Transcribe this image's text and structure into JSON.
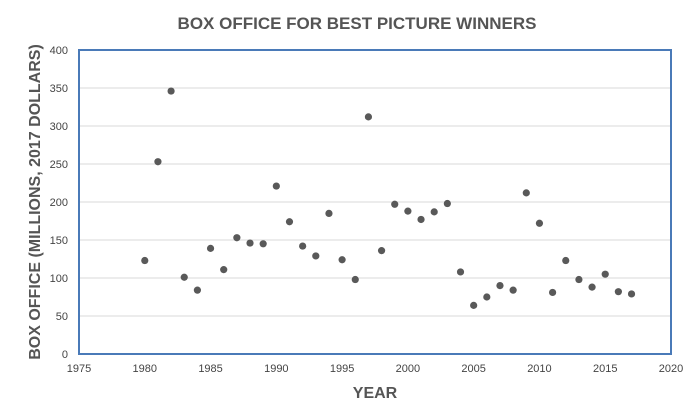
{
  "chart_data": {
    "type": "scatter",
    "title": "BOX OFFICE FOR BEST PICTURE WINNERS",
    "xlabel": "YEAR",
    "ylabel": "BOX OFFICE (MILLIONS, 2017 DOLLARS)",
    "xlim": [
      1975,
      2020
    ],
    "ylim": [
      0,
      400
    ],
    "xticks": [
      1975,
      1980,
      1985,
      1990,
      1995,
      2000,
      2005,
      2010,
      2015,
      2020
    ],
    "yticks": [
      0,
      50,
      100,
      150,
      200,
      250,
      300,
      350,
      400
    ],
    "grid": "horizontal",
    "legend": "none",
    "marker_color": "#595959",
    "plot_border_color": "#4a7ab8",
    "x": [
      1980,
      1981,
      1982,
      1983,
      1984,
      1985,
      1986,
      1987,
      1988,
      1989,
      1990,
      1991,
      1992,
      1993,
      1994,
      1995,
      1996,
      1997,
      1998,
      1999,
      2000,
      2001,
      2002,
      2003,
      2004,
      2005,
      2006,
      2007,
      2008,
      2009,
      2010,
      2011,
      2012,
      2013,
      2014,
      2015,
      2016,
      2017
    ],
    "y": [
      123,
      253,
      346,
      101,
      84,
      139,
      111,
      153,
      146,
      145,
      221,
      174,
      142,
      129,
      185,
      124,
      98,
      312,
      136,
      197,
      188,
      177,
      187,
      198,
      108,
      64,
      75,
      90,
      84,
      212,
      172,
      81,
      123,
      98,
      88,
      105,
      82,
      79
    ]
  }
}
